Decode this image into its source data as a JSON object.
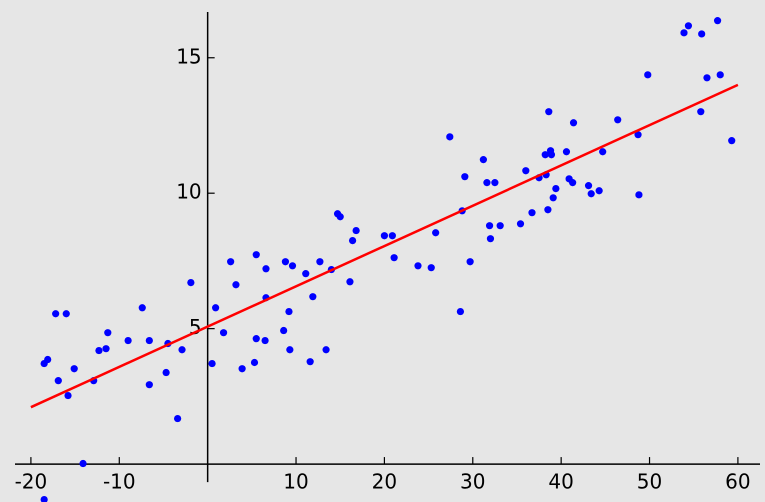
{
  "chart_data": {
    "type": "scatter",
    "xlim": [
      -21.8,
      62.5
    ],
    "ylim": [
      -1.4,
      16.8
    ],
    "xticks": [
      -20,
      -10,
      10,
      20,
      30,
      40,
      50,
      60
    ],
    "yticks": [
      5,
      10,
      15
    ],
    "background": "#e6e6e6",
    "series": [
      {
        "type": "scatter",
        "color": "#0000ff",
        "x": [
          -18.5,
          -18.5,
          -18.1,
          -17.2,
          -16.0,
          -16.9,
          -15.8,
          -15.1,
          -14.1,
          -12.9,
          -12.3,
          -11.5,
          -11.3,
          -9.0,
          -7.4,
          -6.6,
          -6.6,
          -4.7,
          -4.5,
          -3.4,
          -2.9,
          -1.9,
          0.5,
          0.9,
          1.8,
          2.6,
          3.2,
          3.9,
          5.3,
          5.5,
          5.5,
          6.5,
          6.6,
          6.6,
          8.6,
          8.8,
          9.2,
          9.3,
          9.6,
          11.1,
          11.6,
          11.9,
          12.7,
          13.4,
          14.0,
          14.7,
          15.0,
          16.1,
          16.4,
          16.8,
          20.0,
          20.9,
          21.1,
          23.8,
          25.3,
          25.8,
          27.4,
          28.6,
          28.8,
          29.1,
          29.7,
          31.2,
          31.6,
          31.9,
          32.0,
          32.5,
          33.1,
          35.4,
          36.0,
          36.7,
          37.5,
          38.2,
          38.3,
          38.5,
          38.6,
          38.8,
          38.9,
          39.1,
          39.4,
          40.6,
          40.9,
          41.3,
          41.4,
          43.1,
          43.4,
          44.3,
          44.7,
          46.4,
          48.7,
          48.8,
          49.8,
          53.9,
          54.4,
          55.8,
          55.9,
          56.5,
          57.7,
          58.0,
          59.3
        ],
        "values": [
          -1.31,
          3.71,
          3.86,
          5.55,
          5.55,
          3.08,
          2.53,
          3.52,
          0.02,
          3.08,
          4.19,
          4.26,
          4.85,
          4.56,
          5.77,
          2.93,
          4.56,
          3.38,
          4.45,
          1.68,
          4.22,
          6.7,
          3.71,
          5.77,
          4.85,
          7.47,
          6.62,
          3.52,
          3.75,
          7.73,
          4.63,
          4.56,
          7.21,
          6.14,
          4.93,
          7.47,
          5.63,
          4.22,
          7.32,
          7.03,
          3.78,
          6.18,
          7.47,
          4.22,
          7.18,
          9.24,
          9.13,
          6.73,
          8.25,
          8.62,
          8.43,
          8.43,
          7.62,
          7.32,
          7.25,
          8.54,
          12.08,
          5.63,
          9.35,
          10.61,
          7.47,
          11.24,
          10.39,
          8.8,
          8.32,
          10.39,
          8.8,
          8.87,
          10.83,
          9.28,
          10.57,
          11.42,
          10.68,
          9.39,
          13.01,
          11.57,
          11.42,
          9.83,
          10.17,
          11.53,
          10.53,
          10.39,
          12.6,
          10.28,
          9.98,
          10.09,
          11.53,
          12.71,
          12.16,
          9.94,
          14.37,
          15.92,
          16.18,
          13.01,
          15.88,
          14.26,
          16.37,
          14.37,
          11.94
        ]
      },
      {
        "type": "line",
        "color": "#ff0000",
        "x": [
          -20,
          60
        ],
        "values": [
          2.1,
          14.0
        ]
      }
    ]
  }
}
